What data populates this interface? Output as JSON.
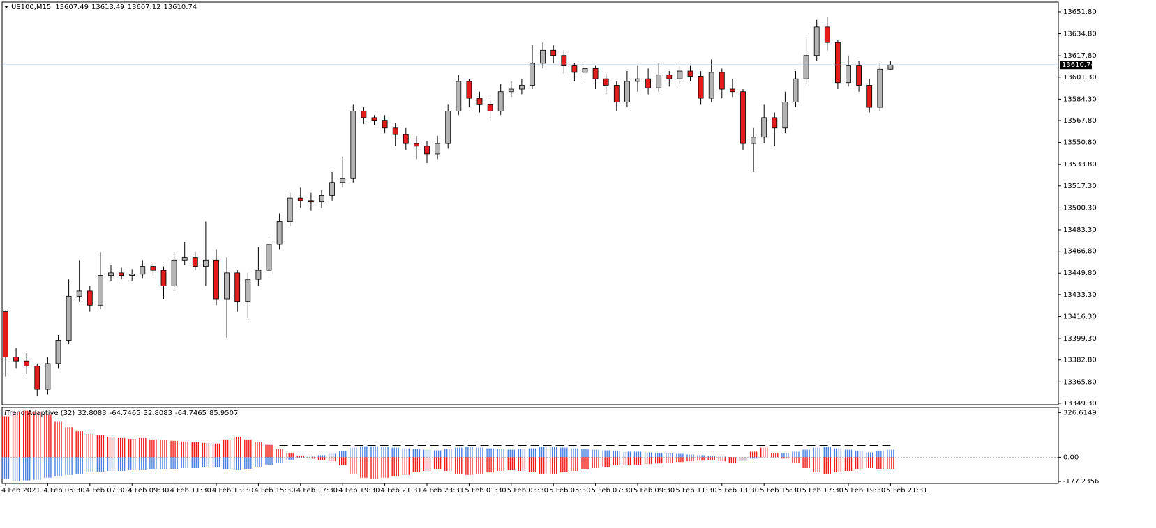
{
  "chart_data": [
    {
      "type": "candlestick",
      "title": "US100,M15",
      "categories": [
        "4 Feb 2021",
        null,
        null,
        null,
        "4 Feb 05:30",
        null,
        null,
        null,
        "4 Feb 07:30",
        null,
        null,
        null,
        "4 Feb 09:30",
        null,
        null,
        null,
        "4 Feb 11:30",
        null,
        null,
        null,
        "4 Feb 13:30",
        null,
        null,
        null,
        "4 Feb 15:30",
        null,
        null,
        null,
        "4 Feb 17:30",
        null,
        null,
        null,
        "4 Feb 19:30",
        null,
        null,
        null,
        "4 Feb 21:31",
        null,
        null,
        null,
        "4 Feb 23:31",
        null,
        null,
        null,
        "5 Feb 01:30",
        null,
        null,
        null,
        "5 Feb 03:30",
        null,
        null,
        null,
        "5 Feb 05:30",
        null,
        null,
        null,
        "5 Feb 07:30",
        null,
        null,
        null,
        "5 Feb 09:30",
        null,
        null,
        null,
        "5 Feb 11:30",
        null,
        null,
        null,
        "5 Feb 13:30",
        null,
        null,
        null,
        "5 Feb 15:30",
        null,
        null,
        null,
        "5 Feb 17:30",
        null,
        null,
        null,
        "5 Feb 19:30",
        null,
        null,
        null,
        "5 Feb 21:31"
      ],
      "open": [
        13420,
        13385,
        13382,
        13378,
        13360,
        13380,
        13398,
        13432,
        13436,
        13425,
        13448,
        13450,
        13448,
        13449,
        13455,
        13452,
        13440,
        13460,
        13462,
        13455,
        13460,
        13430,
        13450,
        13428,
        13445,
        13452,
        13472,
        13490,
        13508,
        13506,
        13505,
        13510,
        13520,
        13523,
        13575,
        13570,
        13568,
        13562,
        13557,
        13550,
        13548,
        13542,
        13550,
        13575,
        13598,
        13585,
        13580,
        13575,
        13590,
        13592,
        13595,
        13612,
        13622,
        13618,
        13610,
        13605,
        13608,
        13600,
        13595,
        13582,
        13598,
        13600,
        13593,
        13603,
        13600,
        13606,
        13602,
        13585,
        13605,
        13592,
        13590,
        13550,
        13555,
        13570,
        13562,
        13582,
        13600,
        13618,
        13640,
        13628,
        13597,
        13610,
        13595,
        13578,
        13607.49
      ],
      "high": [
        13421,
        13392,
        13388,
        13380,
        13385,
        13402,
        13445,
        13460,
        13440,
        13466,
        13456,
        13454,
        13453,
        13460,
        13458,
        13455,
        13466,
        13474,
        13466,
        13490,
        13468,
        13462,
        13452,
        13450,
        13470,
        13476,
        13496,
        13512,
        13516,
        13512,
        13514,
        13528,
        13540,
        13580,
        13578,
        13572,
        13572,
        13566,
        13562,
        13556,
        13552,
        13556,
        13580,
        13603,
        13600,
        13590,
        13584,
        13596,
        13598,
        13600,
        13626,
        13628,
        13626,
        13622,
        13612,
        13612,
        13610,
        13604,
        13598,
        13606,
        13610,
        13608,
        13612,
        13606,
        13610,
        13610,
        13606,
        13615,
        13608,
        13600,
        13592,
        13562,
        13580,
        13574,
        13590,
        13606,
        13632,
        13646,
        13648,
        13630,
        13618,
        13614,
        13600,
        13612,
        13613.49
      ],
      "low": [
        13370,
        13376,
        13372,
        13355,
        13356,
        13376,
        13395,
        13428,
        13420,
        13422,
        13444,
        13445,
        13444,
        13446,
        13448,
        13430,
        13436,
        13456,
        13452,
        13440,
        13425,
        13400,
        13420,
        13415,
        13440,
        13448,
        13468,
        13486,
        13500,
        13498,
        13500,
        13506,
        13516,
        13520,
        13565,
        13564,
        13558,
        13548,
        13545,
        13538,
        13535,
        13538,
        13546,
        13572,
        13578,
        13574,
        13568,
        13572,
        13586,
        13588,
        13592,
        13608,
        13612,
        13604,
        13598,
        13600,
        13592,
        13588,
        13575,
        13578,
        13590,
        13588,
        13590,
        13594,
        13596,
        13598,
        13580,
        13582,
        13585,
        13586,
        13545,
        13528,
        13550,
        13548,
        13558,
        13578,
        13596,
        13614,
        13622,
        13592,
        13594,
        13590,
        13574,
        13575,
        13607.12
      ],
      "close": [
        13385,
        13382,
        13378,
        13360,
        13380,
        13398,
        13432,
        13436,
        13425,
        13448,
        13450,
        13448,
        13449,
        13455,
        13452,
        13440,
        13460,
        13462,
        13455,
        13460,
        13430,
        13450,
        13428,
        13445,
        13452,
        13472,
        13490,
        13508,
        13506,
        13505,
        13510,
        13520,
        13523,
        13575,
        13570,
        13568,
        13562,
        13557,
        13550,
        13548,
        13542,
        13550,
        13575,
        13598,
        13585,
        13580,
        13575,
        13590,
        13592,
        13595,
        13612,
        13622,
        13618,
        13610,
        13605,
        13608,
        13600,
        13595,
        13582,
        13598,
        13600,
        13593,
        13603,
        13600,
        13606,
        13602,
        13585,
        13605,
        13592,
        13590,
        13550,
        13555,
        13570,
        13562,
        13582,
        13600,
        13618,
        13640,
        13628,
        13597,
        13610,
        13595,
        13578,
        13607.49,
        13610.74
      ],
      "up_color": "#b4b4b4",
      "down_color": "#e41b1b",
      "ylim": [
        13348.2,
        13659.3
      ],
      "yticks": [
        {
          "value": 13651.8,
          "label": "13651.80"
        },
        {
          "value": 13634.8,
          "label": "13634.80"
        },
        {
          "value": 13617.8,
          "label": "13617.80"
        },
        {
          "value": 13601.3,
          "label": "13601.30"
        },
        {
          "value": 13584.3,
          "label": "13584.30"
        },
        {
          "value": 13567.8,
          "label": "13567.80"
        },
        {
          "value": 13550.8,
          "label": "13550.80"
        },
        {
          "value": 13533.8,
          "label": "13533.80"
        },
        {
          "value": 13517.3,
          "label": "13517.30"
        },
        {
          "value": 13500.3,
          "label": "13500.30"
        },
        {
          "value": 13483.3,
          "label": "13483.30"
        },
        {
          "value": 13466.8,
          "label": "13466.80"
        },
        {
          "value": 13449.8,
          "label": "13449.80"
        },
        {
          "value": 13433.3,
          "label": "13433.30"
        },
        {
          "value": 13416.3,
          "label": "13416.30"
        },
        {
          "value": 13399.3,
          "label": "13399.30"
        },
        {
          "value": 13382.8,
          "label": "13382.80"
        },
        {
          "value": 13365.8,
          "label": "13365.80"
        },
        {
          "value": 13349.3,
          "label": "13349.30"
        }
      ]
    },
    {
      "type": "histogram-indicator",
      "title": "iTrend Adaptive (32)",
      "header_values": [
        32.8083,
        -64.7465,
        32.8083,
        -64.7465,
        85.9507
      ],
      "series": [
        {
          "color": "#4a7fe0",
          "values": [
            -160,
            -175,
            -170,
            -165,
            -150,
            -140,
            -130,
            -120,
            -110,
            -105,
            -100,
            -100,
            -95,
            -95,
            -90,
            -90,
            -85,
            -80,
            -80,
            -75,
            -75,
            -90,
            -95,
            -85,
            -70,
            -55,
            -40,
            -20,
            -5,
            5,
            15,
            25,
            45,
            70,
            80,
            80,
            75,
            70,
            65,
            60,
            55,
            50,
            60,
            70,
            75,
            70,
            65,
            60,
            55,
            60,
            65,
            75,
            75,
            70,
            65,
            60,
            55,
            50,
            45,
            40,
            40,
            35,
            30,
            28,
            25,
            20,
            15,
            10,
            5,
            -20,
            -30,
            -10,
            20,
            10,
            30,
            40,
            55,
            70,
            75,
            65,
            55,
            45,
            35,
            45,
            55
          ]
        },
        {
          "color": "#f01a1a",
          "values": [
            300,
            330,
            340,
            330,
            310,
            260,
            220,
            190,
            170,
            160,
            150,
            140,
            135,
            140,
            130,
            125,
            120,
            115,
            110,
            105,
            100,
            130,
            150,
            130,
            110,
            90,
            60,
            30,
            10,
            -10,
            -20,
            -30,
            -60,
            -120,
            -150,
            -160,
            -150,
            -140,
            -130,
            -110,
            -100,
            -90,
            -100,
            -120,
            -130,
            -120,
            -110,
            -100,
            -95,
            -100,
            -110,
            -120,
            -120,
            -110,
            -100,
            -90,
            -80,
            -70,
            -60,
            -60,
            -55,
            -50,
            -45,
            -40,
            -35,
            -30,
            -25,
            -20,
            -30,
            -40,
            -20,
            40,
            70,
            30,
            -10,
            -40,
            -80,
            -110,
            -120,
            -110,
            -100,
            -90,
            -80,
            -85,
            -90
          ]
        }
      ],
      "ylim": [
        -187,
        359
      ],
      "yticks": [
        {
          "value": 326.6149,
          "label": "326.6149"
        },
        {
          "value": 0,
          "label": "0.00"
        },
        {
          "value": -177.2356,
          "label": "-177.2356"
        }
      ]
    }
  ]
}
